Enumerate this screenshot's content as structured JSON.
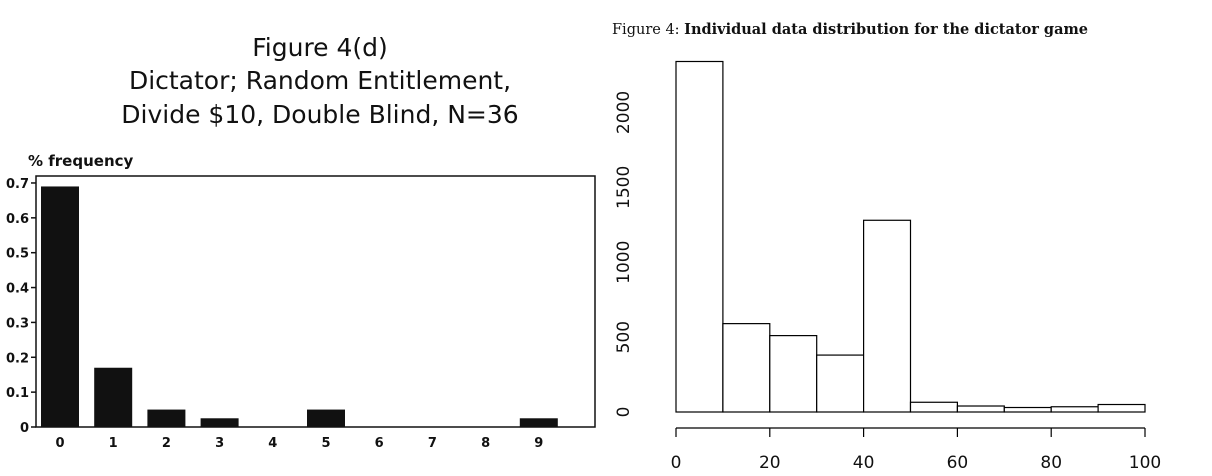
{
  "chart_data": [
    {
      "type": "bar",
      "title": "Figure 4(d)",
      "subtitle_lines": [
        "Dictator; Random Entitlement,",
        "Divide $10, Double Blind, N=36"
      ],
      "ylabel": "% frequency",
      "xlabel": "",
      "categories": [
        "0",
        "1",
        "2",
        "3",
        "4",
        "5",
        "6",
        "7",
        "8",
        "9"
      ],
      "values": [
        0.69,
        0.17,
        0.05,
        0.025,
        0.0,
        0.05,
        0.0,
        0.0,
        0.0,
        0.025
      ],
      "ylim": [
        0,
        0.72
      ],
      "yticks": [
        0,
        0.1,
        0.2,
        0.3,
        0.4,
        0.5,
        0.6,
        0.7
      ],
      "ytick_labels": [
        "0",
        "0.1",
        "0.2",
        "0.3",
        "0.4",
        "0.5",
        "0.6",
        "0.7"
      ],
      "bar_color": "#111111",
      "grid": false
    },
    {
      "type": "bar",
      "title_prefix": "Figure 4: ",
      "title_bold": "Individual data distribution for the dictator game",
      "bins": [
        [
          0,
          10
        ],
        [
          10,
          20
        ],
        [
          20,
          30
        ],
        [
          30,
          40
        ],
        [
          40,
          50
        ],
        [
          50,
          60
        ],
        [
          60,
          70
        ],
        [
          70,
          80
        ],
        [
          80,
          90
        ],
        [
          90,
          100
        ]
      ],
      "values": [
        2340,
        590,
        510,
        380,
        1280,
        65,
        40,
        30,
        35,
        50
      ],
      "xlim": [
        0,
        100
      ],
      "ylim": [
        0,
        2350
      ],
      "xticks": [
        0,
        20,
        40,
        60,
        80,
        100
      ],
      "xtick_labels": [
        "0",
        "20",
        "40",
        "60",
        "80",
        "100"
      ],
      "yticks": [
        0,
        500,
        1000,
        1500,
        2000
      ],
      "ytick_labels": [
        "0",
        "500",
        "1000",
        "1500",
        "2000"
      ],
      "bar_fill": "#ffffff",
      "bar_stroke": "#000000",
      "grid": false
    }
  ]
}
